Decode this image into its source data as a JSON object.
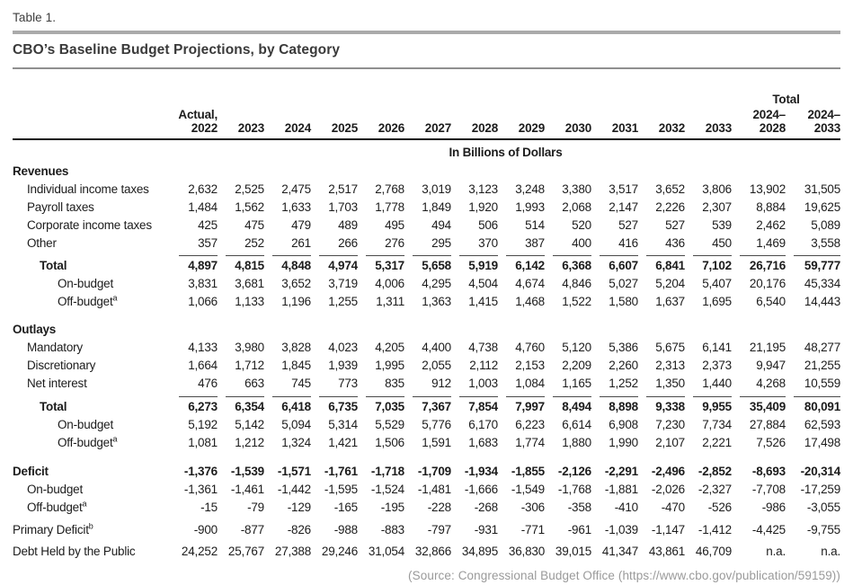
{
  "table_label": "Table 1.",
  "title": "CBO’s Baseline Budget Projections, by Category",
  "source_note": "(Source: Congressional Budget Office (https://www.cbo.gov/publication/59159))",
  "table": {
    "units_label": "In Billions of Dollars",
    "total_group_label": "Total",
    "headers": [
      {
        "line1": "Actual,",
        "line2": "2022"
      },
      {
        "line1": "",
        "line2": "2023"
      },
      {
        "line1": "",
        "line2": "2024"
      },
      {
        "line1": "",
        "line2": "2025"
      },
      {
        "line1": "",
        "line2": "2026"
      },
      {
        "line1": "",
        "line2": "2027"
      },
      {
        "line1": "",
        "line2": "2028"
      },
      {
        "line1": "",
        "line2": "2029"
      },
      {
        "line1": "",
        "line2": "2030"
      },
      {
        "line1": "",
        "line2": "2031"
      },
      {
        "line1": "",
        "line2": "2032"
      },
      {
        "line1": "",
        "line2": "2033"
      },
      {
        "line1": "2024–",
        "line2": "2028"
      },
      {
        "line1": "2024–",
        "line2": "2033"
      }
    ],
    "rows": [
      {
        "label": "Revenues",
        "style": "section",
        "values": []
      },
      {
        "label": "Individual income taxes",
        "style": "item",
        "values": [
          "2,632",
          "2,525",
          "2,475",
          "2,517",
          "2,768",
          "3,019",
          "3,123",
          "3,248",
          "3,380",
          "3,517",
          "3,652",
          "3,806",
          "13,902",
          "31,505"
        ]
      },
      {
        "label": "Payroll taxes",
        "style": "item",
        "values": [
          "1,484",
          "1,562",
          "1,633",
          "1,703",
          "1,778",
          "1,849",
          "1,920",
          "1,993",
          "2,068",
          "2,147",
          "2,226",
          "2,307",
          "8,884",
          "19,625"
        ]
      },
      {
        "label": "Corporate income taxes",
        "style": "item",
        "values": [
          "425",
          "475",
          "479",
          "489",
          "495",
          "494",
          "506",
          "514",
          "520",
          "527",
          "527",
          "539",
          "2,462",
          "5,089"
        ]
      },
      {
        "label": "Other",
        "style": "item",
        "values": [
          "357",
          "252",
          "261",
          "266",
          "276",
          "295",
          "370",
          "387",
          "400",
          "416",
          "436",
          "450",
          "1,469",
          "3,558"
        ]
      },
      {
        "label": "Total",
        "style": "total",
        "sumline": true,
        "values": [
          "4,897",
          "4,815",
          "4,848",
          "4,974",
          "5,317",
          "5,658",
          "5,919",
          "6,142",
          "6,368",
          "6,607",
          "6,841",
          "7,102",
          "26,716",
          "59,777"
        ]
      },
      {
        "label": "On-budget",
        "style": "sub",
        "values": [
          "3,831",
          "3,681",
          "3,652",
          "3,719",
          "4,006",
          "4,295",
          "4,504",
          "4,674",
          "4,846",
          "5,027",
          "5,204",
          "5,407",
          "20,176",
          "45,334"
        ]
      },
      {
        "label": "Off-budget",
        "sup": "a",
        "style": "sub",
        "values": [
          "1,066",
          "1,133",
          "1,196",
          "1,255",
          "1,311",
          "1,363",
          "1,415",
          "1,468",
          "1,522",
          "1,580",
          "1,637",
          "1,695",
          "6,540",
          "14,443"
        ]
      },
      {
        "label": "Outlays",
        "style": "section",
        "spacer_before": 11,
        "values": []
      },
      {
        "label": "Mandatory",
        "style": "item",
        "values": [
          "4,133",
          "3,980",
          "3,828",
          "4,023",
          "4,205",
          "4,400",
          "4,738",
          "4,760",
          "5,120",
          "5,386",
          "5,675",
          "6,141",
          "21,195",
          "48,277"
        ]
      },
      {
        "label": "Discretionary",
        "style": "item",
        "values": [
          "1,664",
          "1,712",
          "1,845",
          "1,939",
          "1,995",
          "2,055",
          "2,112",
          "2,153",
          "2,209",
          "2,260",
          "2,313",
          "2,373",
          "9,947",
          "21,255"
        ]
      },
      {
        "label": "Net interest",
        "style": "item",
        "values": [
          "476",
          "663",
          "745",
          "773",
          "835",
          "912",
          "1,003",
          "1,084",
          "1,165",
          "1,252",
          "1,350",
          "1,440",
          "4,268",
          "10,559"
        ]
      },
      {
        "label": "Total",
        "style": "total",
        "sumline": true,
        "values": [
          "6,273",
          "6,354",
          "6,418",
          "6,735",
          "7,035",
          "7,367",
          "7,854",
          "7,997",
          "8,494",
          "8,898",
          "9,338",
          "9,955",
          "35,409",
          "80,091"
        ]
      },
      {
        "label": "On-budget",
        "style": "sub",
        "values": [
          "5,192",
          "5,142",
          "5,094",
          "5,314",
          "5,529",
          "5,776",
          "6,170",
          "6,223",
          "6,614",
          "6,908",
          "7,230",
          "7,734",
          "27,884",
          "62,593"
        ]
      },
      {
        "label": "Off-budget",
        "sup": "a",
        "style": "sub",
        "values": [
          "1,081",
          "1,212",
          "1,324",
          "1,421",
          "1,506",
          "1,591",
          "1,683",
          "1,774",
          "1,880",
          "1,990",
          "2,107",
          "2,221",
          "7,526",
          "17,498"
        ]
      },
      {
        "label": "Deficit",
        "style": "deficit",
        "spacer_before": 12,
        "values": [
          "-1,376",
          "-1,539",
          "-1,571",
          "-1,761",
          "-1,718",
          "-1,709",
          "-1,934",
          "-1,855",
          "-2,126",
          "-2,291",
          "-2,496",
          "-2,852",
          "-8,693",
          "-20,314"
        ]
      },
      {
        "label": "On-budget",
        "style": "item",
        "values": [
          "-1,361",
          "-1,461",
          "-1,442",
          "-1,595",
          "-1,524",
          "-1,481",
          "-1,666",
          "-1,549",
          "-1,768",
          "-1,881",
          "-2,026",
          "-2,327",
          "-7,708",
          "-17,259"
        ]
      },
      {
        "label": "Off-budget",
        "sup": "a",
        "style": "item",
        "values": [
          "-15",
          "-79",
          "-129",
          "-165",
          "-195",
          "-228",
          "-268",
          "-306",
          "-358",
          "-410",
          "-470",
          "-526",
          "-986",
          "-3,055"
        ]
      },
      {
        "label": "Primary Deficit",
        "sup": "b",
        "style": "plain",
        "spacer_before": 5,
        "values": [
          "-900",
          "-877",
          "-826",
          "-988",
          "-883",
          "-797",
          "-931",
          "-771",
          "-961",
          "-1,039",
          "-1,147",
          "-1,412",
          "-4,425",
          "-9,755"
        ]
      },
      {
        "label": "Debt Held by the Public",
        "style": "plain",
        "spacer_before": 4,
        "values": [
          "24,252",
          "25,767",
          "27,388",
          "29,246",
          "31,054",
          "32,866",
          "34,895",
          "36,830",
          "39,015",
          "41,347",
          "43,861",
          "46,709",
          "n.a.",
          "n.a."
        ]
      }
    ]
  }
}
